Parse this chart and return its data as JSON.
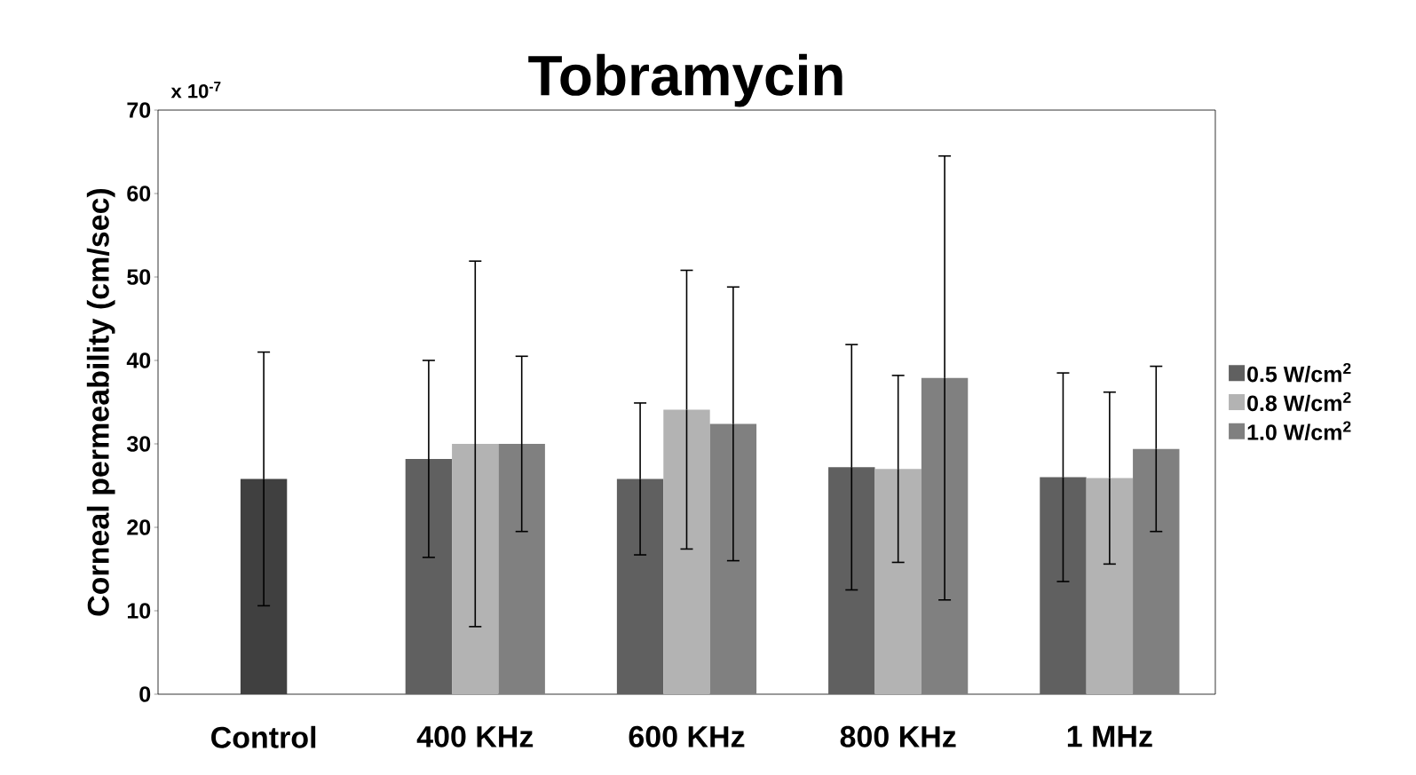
{
  "chart_data": {
    "type": "bar",
    "title": "Tobramycin",
    "ylabel": "Corneal permeability (cm/sec)",
    "annotations": [
      "x 10$^{-7}$"
    ],
    "categories": [
      "Control",
      "400 KHz",
      "600 KHz",
      "800 KHz",
      "1 MHz"
    ],
    "series": [
      {
        "color": "#404040",
        "values": [
          25.8,
          null,
          null,
          null,
          null
        ],
        "errors": [
          15.2,
          null,
          null,
          null,
          null
        ]
      },
      {
        "name": "0.5 W/cm$^{2}$",
        "color": "#606060",
        "values": [
          null,
          28.2,
          25.8,
          27.2,
          26.0
        ],
        "errors": [
          null,
          11.8,
          9.1,
          14.7,
          12.5
        ]
      },
      {
        "name": "0.8 W/cm$^{2}$",
        "color": "#b3b3b3",
        "values": [
          null,
          30.0,
          34.1,
          27.0,
          25.9
        ],
        "errors": [
          null,
          21.9,
          16.7,
          11.2,
          10.3
        ]
      },
      {
        "name": "1.0 W/cm$^{2}$",
        "color": "#808080",
        "values": [
          null,
          30.0,
          32.4,
          37.9,
          29.4
        ],
        "errors": [
          null,
          10.5,
          16.4,
          26.6,
          9.9
        ]
      }
    ],
    "ylim": [
      0,
      70
    ],
    "yticks": [
      0,
      10,
      20,
      30,
      40,
      50,
      60,
      70
    ],
    "legend": "right"
  }
}
